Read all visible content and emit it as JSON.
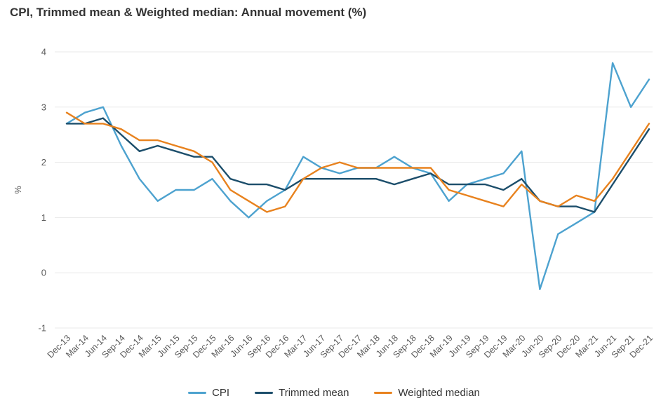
{
  "title": "CPI, Trimmed mean & Weighted median: Annual movement (%)",
  "colors": {
    "background": "#ffffff",
    "grid": "#e8e8e8",
    "axis_text": "#595959",
    "title_text": "#333333",
    "legend_text": "#333333"
  },
  "chart_data": {
    "type": "line",
    "title": "CPI, Trimmed mean & Weighted median: Annual movement (%)",
    "xlabel": "",
    "ylabel": "%",
    "ylim": [
      -1,
      4
    ],
    "yticks": [
      4,
      3,
      2,
      1,
      0,
      -1
    ],
    "grid": "horizontal",
    "legend_position": "bottom-center",
    "categories": [
      "Dec-13",
      "Mar-14",
      "Jun-14",
      "Sep-14",
      "Dec-14",
      "Mar-15",
      "Jun-15",
      "Sep-15",
      "Dec-15",
      "Mar-16",
      "Jun-16",
      "Sep-16",
      "Dec-16",
      "Mar-17",
      "Jun-17",
      "Sep-17",
      "Dec-17",
      "Mar-18",
      "Jun-18",
      "Sep-18",
      "Dec-18",
      "Mar-19",
      "Jun-19",
      "Sep-19",
      "Dec-19",
      "Mar-20",
      "Jun-20",
      "Sep-20",
      "Dec-20",
      "Mar-21",
      "Jun-21",
      "Sep-21",
      "Dec-21"
    ],
    "series": [
      {
        "name": "CPI",
        "color": "#4da2cf",
        "values": [
          2.7,
          2.9,
          3.0,
          2.3,
          1.7,
          1.3,
          1.5,
          1.5,
          1.7,
          1.3,
          1.0,
          1.3,
          1.5,
          2.1,
          1.9,
          1.8,
          1.9,
          1.9,
          2.1,
          1.9,
          1.8,
          1.3,
          1.6,
          1.7,
          1.8,
          2.2,
          -0.3,
          0.7,
          0.9,
          1.1,
          3.8,
          3.0,
          3.5
        ]
      },
      {
        "name": "Trimmed mean",
        "color": "#1c4e6b",
        "values": [
          2.7,
          2.7,
          2.8,
          2.5,
          2.2,
          2.3,
          2.2,
          2.1,
          2.1,
          1.7,
          1.6,
          1.6,
          1.5,
          1.7,
          1.7,
          1.7,
          1.7,
          1.7,
          1.6,
          1.7,
          1.8,
          1.6,
          1.6,
          1.6,
          1.5,
          1.7,
          1.3,
          1.2,
          1.2,
          1.1,
          1.6,
          2.1,
          2.6
        ]
      },
      {
        "name": "Weighted median",
        "color": "#e8821e",
        "values": [
          2.9,
          2.7,
          2.7,
          2.6,
          2.4,
          2.4,
          2.3,
          2.2,
          2.0,
          1.5,
          1.3,
          1.1,
          1.2,
          1.7,
          1.9,
          2.0,
          1.9,
          1.9,
          1.9,
          1.9,
          1.9,
          1.5,
          1.4,
          1.3,
          1.2,
          1.6,
          1.3,
          1.2,
          1.4,
          1.3,
          1.7,
          2.2,
          2.7
        ]
      }
    ]
  }
}
